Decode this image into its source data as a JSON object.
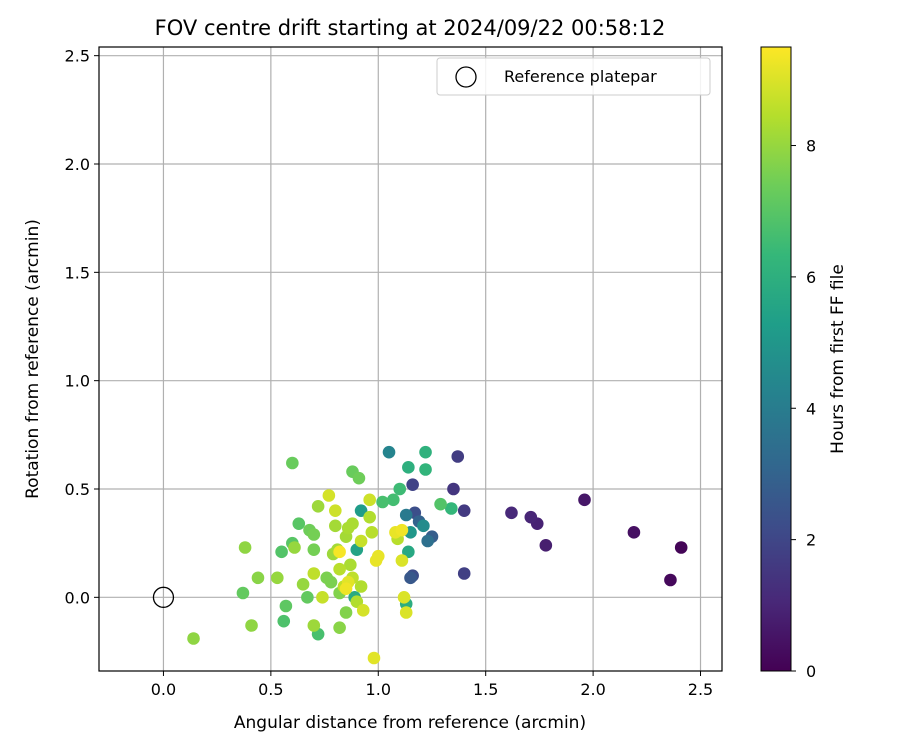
{
  "chart_data": {
    "type": "scatter",
    "title": "FOV centre drift starting at 2024/09/22 00:58:12",
    "xlabel": "Angular distance from reference (arcmin)",
    "ylabel": "Rotation from reference (arcmin)",
    "xlim": [
      -0.3,
      2.6
    ],
    "ylim": [
      -0.34,
      2.54
    ],
    "xticks": [
      "0.0",
      "0.5",
      "1.0",
      "1.5",
      "2.0",
      "2.5"
    ],
    "yticks": [
      "0.0",
      "0.5",
      "1.0",
      "1.5",
      "2.0",
      "2.5"
    ],
    "grid": true,
    "legend": {
      "location": "top-right",
      "label": "Reference platepar"
    },
    "reference": {
      "x": 0.0,
      "y": 0.0
    },
    "colorbar": {
      "label": "Hours from first FF file",
      "range": [
        0,
        9.5
      ],
      "ticks": [
        "0",
        "2",
        "4",
        "6",
        "8"
      ],
      "colormap": "viridis"
    },
    "points": [
      {
        "x": 2.41,
        "y": 0.23,
        "h": 0.1
      },
      {
        "x": 2.36,
        "y": 0.08,
        "h": 0.2
      },
      {
        "x": 2.19,
        "y": 0.3,
        "h": 0.4
      },
      {
        "x": 1.96,
        "y": 0.45,
        "h": 0.6
      },
      {
        "x": 1.78,
        "y": 0.24,
        "h": 0.8
      },
      {
        "x": 1.74,
        "y": 0.34,
        "h": 0.9
      },
      {
        "x": 1.71,
        "y": 0.37,
        "h": 1.0
      },
      {
        "x": 1.62,
        "y": 0.39,
        "h": 1.1
      },
      {
        "x": 1.4,
        "y": 0.4,
        "h": 1.6
      },
      {
        "x": 1.37,
        "y": 0.65,
        "h": 1.7
      },
      {
        "x": 1.35,
        "y": 0.5,
        "h": 1.5
      },
      {
        "x": 1.4,
        "y": 0.11,
        "h": 1.8
      },
      {
        "x": 1.16,
        "y": 0.52,
        "h": 1.9
      },
      {
        "x": 1.17,
        "y": 0.39,
        "h": 2.3
      },
      {
        "x": 1.16,
        "y": 0.1,
        "h": 2.2
      },
      {
        "x": 1.15,
        "y": 0.09,
        "h": 2.6
      },
      {
        "x": 1.25,
        "y": 0.28,
        "h": 2.8
      },
      {
        "x": 1.19,
        "y": 0.35,
        "h": 3.0
      },
      {
        "x": 1.23,
        "y": 0.26,
        "h": 3.5
      },
      {
        "x": 1.13,
        "y": 0.38,
        "h": 3.9
      },
      {
        "x": 1.05,
        "y": 0.67,
        "h": 4.3
      },
      {
        "x": 1.21,
        "y": 0.33,
        "h": 4.6
      },
      {
        "x": 1.15,
        "y": 0.3,
        "h": 5.0
      },
      {
        "x": 0.92,
        "y": 0.4,
        "h": 5.2
      },
      {
        "x": 0.9,
        "y": 0.22,
        "h": 5.5
      },
      {
        "x": 1.14,
        "y": 0.21,
        "h": 5.7
      },
      {
        "x": 1.13,
        "y": -0.03,
        "h": 5.9
      },
      {
        "x": 0.89,
        "y": 0.0,
        "h": 5.8
      },
      {
        "x": 1.14,
        "y": 0.6,
        "h": 6.0
      },
      {
        "x": 1.22,
        "y": 0.67,
        "h": 6.1
      },
      {
        "x": 1.22,
        "y": 0.59,
        "h": 6.2
      },
      {
        "x": 1.34,
        "y": 0.41,
        "h": 6.3
      },
      {
        "x": 1.1,
        "y": 0.5,
        "h": 6.5
      },
      {
        "x": 1.07,
        "y": 0.45,
        "h": 6.6
      },
      {
        "x": 1.02,
        "y": 0.44,
        "h": 6.7
      },
      {
        "x": 1.29,
        "y": 0.43,
        "h": 6.9
      },
      {
        "x": 0.56,
        "y": -0.11,
        "h": 6.8
      },
      {
        "x": 0.72,
        "y": -0.17,
        "h": 6.7
      },
      {
        "x": 0.55,
        "y": 0.21,
        "h": 6.9
      },
      {
        "x": 0.63,
        "y": 0.34,
        "h": 7.0
      },
      {
        "x": 0.6,
        "y": 0.25,
        "h": 7.0
      },
      {
        "x": 0.57,
        "y": -0.04,
        "h": 7.1
      },
      {
        "x": 0.67,
        "y": 0.0,
        "h": 7.2
      },
      {
        "x": 0.37,
        "y": 0.02,
        "h": 7.2
      },
      {
        "x": 0.6,
        "y": 0.62,
        "h": 7.3
      },
      {
        "x": 0.88,
        "y": 0.58,
        "h": 7.3
      },
      {
        "x": 0.91,
        "y": 0.55,
        "h": 7.4
      },
      {
        "x": 0.68,
        "y": 0.31,
        "h": 7.4
      },
      {
        "x": 0.7,
        "y": 0.29,
        "h": 7.5
      },
      {
        "x": 0.7,
        "y": 0.22,
        "h": 7.5
      },
      {
        "x": 0.76,
        "y": 0.09,
        "h": 7.6
      },
      {
        "x": 0.78,
        "y": 0.07,
        "h": 7.6
      },
      {
        "x": 0.82,
        "y": 0.02,
        "h": 7.7
      },
      {
        "x": 0.85,
        "y": -0.07,
        "h": 7.7
      },
      {
        "x": 0.82,
        "y": -0.14,
        "h": 7.8
      },
      {
        "x": 0.44,
        "y": 0.09,
        "h": 7.8
      },
      {
        "x": 0.38,
        "y": 0.23,
        "h": 7.9
      },
      {
        "x": 0.41,
        "y": -0.13,
        "h": 7.9
      },
      {
        "x": 0.14,
        "y": -0.19,
        "h": 7.9
      },
      {
        "x": 0.53,
        "y": 0.09,
        "h": 8.0
      },
      {
        "x": 0.61,
        "y": 0.23,
        "h": 8.0
      },
      {
        "x": 0.65,
        "y": 0.06,
        "h": 8.0
      },
      {
        "x": 0.7,
        "y": -0.13,
        "h": 8.1
      },
      {
        "x": 0.72,
        "y": 0.42,
        "h": 8.1
      },
      {
        "x": 0.79,
        "y": 0.2,
        "h": 8.1
      },
      {
        "x": 0.8,
        "y": 0.33,
        "h": 8.2
      },
      {
        "x": 0.81,
        "y": 0.22,
        "h": 8.2
      },
      {
        "x": 0.85,
        "y": 0.28,
        "h": 8.2
      },
      {
        "x": 0.86,
        "y": 0.32,
        "h": 8.3
      },
      {
        "x": 0.87,
        "y": 0.15,
        "h": 8.3
      },
      {
        "x": 0.88,
        "y": 0.34,
        "h": 8.3
      },
      {
        "x": 0.9,
        "y": -0.02,
        "h": 8.4
      },
      {
        "x": 0.92,
        "y": 0.05,
        "h": 8.4
      },
      {
        "x": 0.96,
        "y": 0.37,
        "h": 8.4
      },
      {
        "x": 0.97,
        "y": 0.3,
        "h": 8.5
      },
      {
        "x": 1.09,
        "y": 0.27,
        "h": 8.5
      },
      {
        "x": 0.82,
        "y": 0.13,
        "h": 8.5
      },
      {
        "x": 0.84,
        "y": 0.05,
        "h": 8.6
      },
      {
        "x": 0.88,
        "y": 0.09,
        "h": 8.6
      },
      {
        "x": 0.7,
        "y": 0.11,
        "h": 8.6
      },
      {
        "x": 0.74,
        "y": 0.0,
        "h": 8.7
      },
      {
        "x": 0.92,
        "y": 0.26,
        "h": 8.7
      },
      {
        "x": 0.8,
        "y": 0.4,
        "h": 8.8
      },
      {
        "x": 0.96,
        "y": 0.45,
        "h": 8.8
      },
      {
        "x": 0.77,
        "y": 0.47,
        "h": 8.9
      },
      {
        "x": 0.93,
        "y": -0.06,
        "h": 8.9
      },
      {
        "x": 1.13,
        "y": -0.07,
        "h": 9.0
      },
      {
        "x": 1.12,
        "y": 0.0,
        "h": 9.0
      },
      {
        "x": 1.11,
        "y": 0.17,
        "h": 9.0
      },
      {
        "x": 0.86,
        "y": 0.07,
        "h": 9.1
      },
      {
        "x": 0.98,
        "y": -0.28,
        "h": 9.1
      },
      {
        "x": 0.99,
        "y": 0.17,
        "h": 9.2
      },
      {
        "x": 1.0,
        "y": 0.19,
        "h": 9.2
      },
      {
        "x": 1.08,
        "y": 0.3,
        "h": 9.2
      },
      {
        "x": 1.11,
        "y": 0.31,
        "h": 9.3
      },
      {
        "x": 0.85,
        "y": 0.04,
        "h": 9.3
      },
      {
        "x": 0.82,
        "y": 0.21,
        "h": 9.4
      }
    ]
  }
}
